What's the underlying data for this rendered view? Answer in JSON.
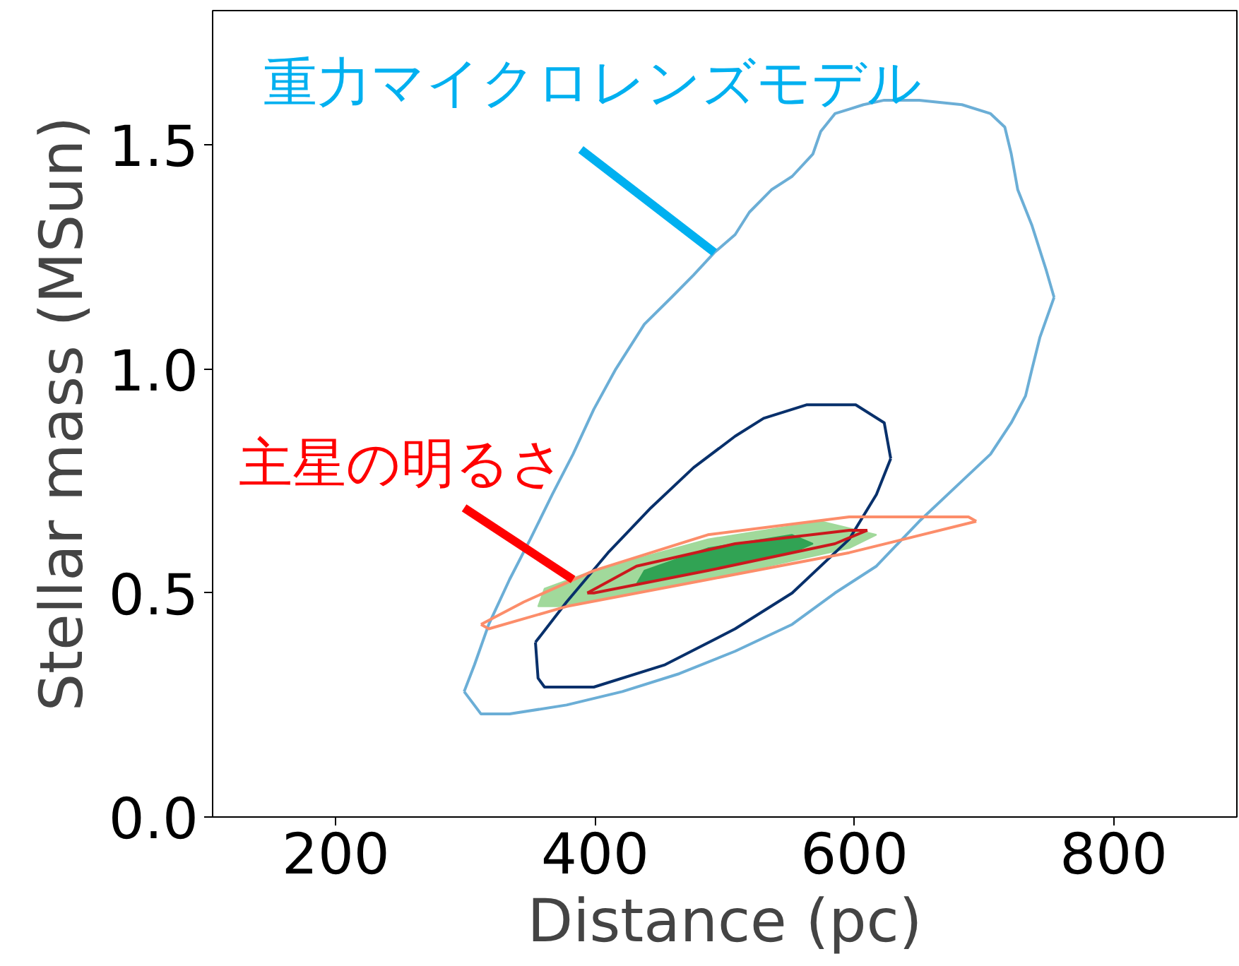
{
  "chart_data": {
    "type": "line",
    "xlabel": "Distance (pc)",
    "ylabel": "Stellar mass (MSun)",
    "xlim": [
      105,
      895
    ],
    "ylim": [
      0,
      1.8
    ],
    "xticks": [
      200,
      400,
      600,
      800
    ],
    "yticks": [
      {
        "value": 0,
        "label": "0.0"
      },
      {
        "value": 0.5,
        "label": "0.5"
      },
      {
        "value": 1.0,
        "label": "1.0"
      },
      {
        "value": 1.5,
        "label": "1.5"
      }
    ],
    "grid": false,
    "marker": "none",
    "line_style": "solid",
    "series": [
      {
        "color": "#6baed6",
        "x": [
          299,
          307,
          318,
          334,
          350,
          367,
          383,
          399,
          416,
          438,
          459,
          476,
          492,
          508,
          519,
          536,
          552,
          568,
          574,
          585,
          596,
          607,
          623,
          650,
          683,
          705,
          716,
          721,
          726,
          737,
          748,
          754
        ],
        "values": [
          0.28,
          0.34,
          0.43,
          0.53,
          0.62,
          0.72,
          0.81,
          0.91,
          1.0,
          1.1,
          1.16,
          1.21,
          1.26,
          1.3,
          1.35,
          1.4,
          1.43,
          1.48,
          1.53,
          1.57,
          1.58,
          1.59,
          1.6,
          1.6,
          1.59,
          1.57,
          1.54,
          1.48,
          1.4,
          1.32,
          1.22,
          1.16
        ]
      },
      {
        "color": "#6baed6",
        "x": [
          299,
          312,
          334,
          378,
          421,
          465,
          508,
          552,
          585,
          617,
          650,
          683,
          705,
          721,
          732,
          737,
          743,
          754
        ],
        "values": [
          0.28,
          0.23,
          0.23,
          0.25,
          0.28,
          0.32,
          0.37,
          0.43,
          0.5,
          0.56,
          0.66,
          0.75,
          0.81,
          0.88,
          0.94,
          1.0,
          1.07,
          1.16
        ]
      },
      {
        "color": "#08306b",
        "x": [
          354,
          378,
          410,
          443,
          476,
          508,
          530,
          563,
          601,
          623,
          628
        ],
        "values": [
          0.39,
          0.48,
          0.59,
          0.69,
          0.78,
          0.85,
          0.89,
          0.92,
          0.92,
          0.88,
          0.8
        ]
      },
      {
        "color": "#08306b",
        "x": [
          354,
          356,
          361,
          399,
          454,
          508,
          552,
          596,
          617,
          628
        ],
        "values": [
          0.39,
          0.31,
          0.29,
          0.29,
          0.34,
          0.42,
          0.5,
          0.62,
          0.72,
          0.8
        ]
      },
      {
        "type": "area",
        "color": "#a1d99b",
        "x": [
          356,
          378,
          487,
          596,
          617,
          574,
          487,
          399,
          361,
          356
        ],
        "values": [
          0.47,
          0.47,
          0.53,
          0.6,
          0.63,
          0.66,
          0.62,
          0.55,
          0.51,
          0.47
        ]
      },
      {
        "type": "area",
        "color": "#31a354",
        "x": [
          432,
          487,
          552,
          568,
          552,
          487,
          438,
          432
        ],
        "values": [
          0.52,
          0.55,
          0.59,
          0.61,
          0.63,
          0.6,
          0.55,
          0.52
        ]
      },
      {
        "color": "#fc8d6a",
        "x": [
          312,
          318,
          378,
          487,
          596,
          694
        ],
        "values": [
          0.43,
          0.42,
          0.47,
          0.53,
          0.59,
          0.66
        ]
      },
      {
        "color": "#fc8d6a",
        "x": [
          312,
          345,
          399,
          487,
          596,
          688,
          694
        ],
        "values": [
          0.43,
          0.48,
          0.55,
          0.63,
          0.67,
          0.67,
          0.66
        ]
      },
      {
        "color": "#cb181d",
        "x": [
          394,
          399,
          487,
          585,
          610
        ],
        "values": [
          0.5,
          0.5,
          0.55,
          0.61,
          0.64
        ]
      },
      {
        "color": "#cb181d",
        "x": [
          394,
          432,
          508,
          596,
          610
        ],
        "values": [
          0.5,
          0.56,
          0.61,
          0.64,
          0.64
        ]
      }
    ],
    "annotations": [
      {
        "text": "重力マイクロレンズモデル",
        "x": 492,
        "y": 1.26
      },
      {
        "text": "主星の明るさ",
        "x": 383,
        "y": 0.53
      }
    ]
  }
}
